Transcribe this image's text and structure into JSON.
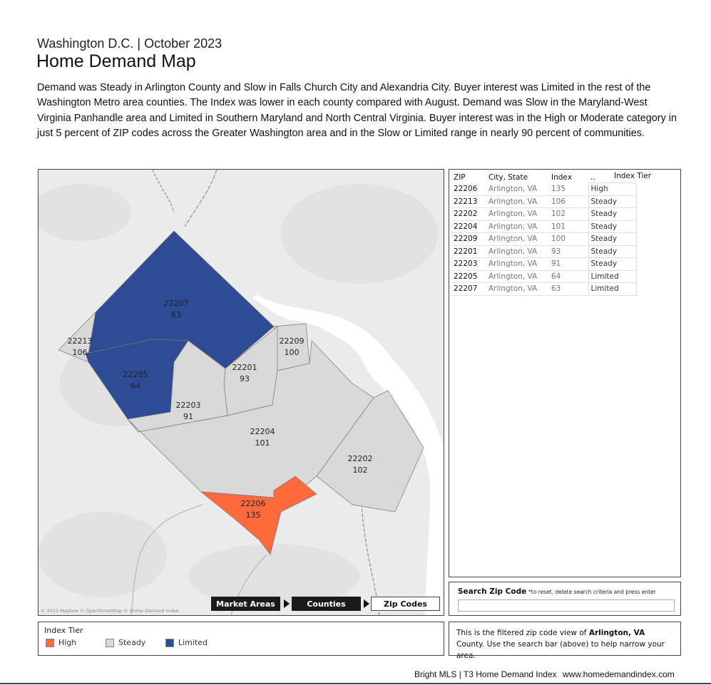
{
  "header": {
    "subtitle": "Washington D.C. | October 2023",
    "title": "Home Demand Map",
    "description": "Demand was Steady in Arlington County and Slow in Falls Church City and Alexandria City. Buyer interest was Limited in the rest of the Washington Metro area counties. The Index was lower in each county compared with August. Demand was Slow in the Maryland-West Virginia Panhandle area and Limited in Southern Maryland and North Central Virginia. Buyer interest was in the High or Moderate category in just 5 percent of ZIP codes across the Greater Washington area and in the Slow or Limited range in nearly 90 percent of communities."
  },
  "colors": {
    "high": "#ff6a3d",
    "steady": "#d9d9d9",
    "limited": "#2e4b96",
    "map_bg": "#ebebeb",
    "water": "#ffffff"
  },
  "map": {
    "attribution": "© 2021 Mapbox © OpenStreetMap © Home Demand Index",
    "zones": [
      {
        "zip": "22207",
        "index": "63",
        "tier": "Limited"
      },
      {
        "zip": "22213",
        "index": "106",
        "tier": "Steady"
      },
      {
        "zip": "22205",
        "index": "64",
        "tier": "Limited"
      },
      {
        "zip": "22209",
        "index": "100",
        "tier": "Steady"
      },
      {
        "zip": "22201",
        "index": "93",
        "tier": "Steady"
      },
      {
        "zip": "22203",
        "index": "91",
        "tier": "Steady"
      },
      {
        "zip": "22204",
        "index": "101",
        "tier": "Steady"
      },
      {
        "zip": "22202",
        "index": "102",
        "tier": "Steady"
      },
      {
        "zip": "22206",
        "index": "135",
        "tier": "High"
      }
    ],
    "breadcrumbs": [
      "Market Areas",
      "Counties",
      "Zip Codes"
    ]
  },
  "table": {
    "headers": {
      "zip": "ZIP",
      "city": "City, State",
      "index": "Index",
      "dots": "..",
      "tier": "Index Tier"
    },
    "rows": [
      {
        "zip": "22206",
        "city": "Arlington, VA",
        "index": "135",
        "tier": "High"
      },
      {
        "zip": "22213",
        "city": "Arlington, VA",
        "index": "106",
        "tier": "Steady"
      },
      {
        "zip": "22202",
        "city": "Arlington, VA",
        "index": "102",
        "tier": "Steady"
      },
      {
        "zip": "22204",
        "city": "Arlington, VA",
        "index": "101",
        "tier": "Steady"
      },
      {
        "zip": "22209",
        "city": "Arlington, VA",
        "index": "100",
        "tier": "Steady"
      },
      {
        "zip": "22201",
        "city": "Arlington, VA",
        "index": "93",
        "tier": "Steady"
      },
      {
        "zip": "22203",
        "city": "Arlington, VA",
        "index": "91",
        "tier": "Steady"
      },
      {
        "zip": "22205",
        "city": "Arlington, VA",
        "index": "64",
        "tier": "Limited"
      },
      {
        "zip": "22207",
        "city": "Arlington, VA",
        "index": "63",
        "tier": "Limited"
      }
    ]
  },
  "search": {
    "label": "Search Zip Code",
    "hint": "*to reset, delete search criteria and press enter",
    "value": ""
  },
  "legend": {
    "title": "Index Tier",
    "items": [
      "High",
      "Steady",
      "Limited"
    ]
  },
  "note": {
    "prefix": "This is the filtered zip code view of ",
    "county": "Arlington, VA",
    "suffix": " County. Use the  search bar (above) to help narrow your area."
  },
  "footer": {
    "left": "Bright MLS | T3 Home Demand Index",
    "right": "www.homedemandindex.com"
  }
}
